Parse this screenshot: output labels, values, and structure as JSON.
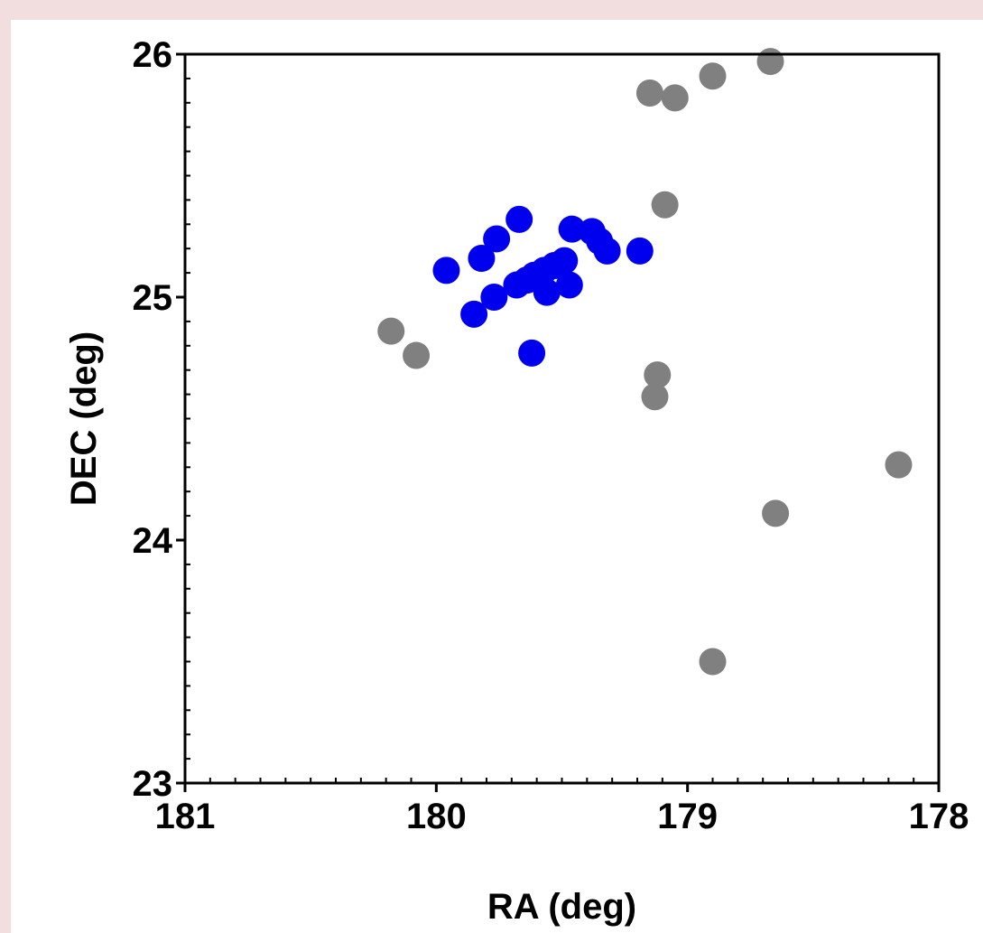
{
  "chart_data": {
    "type": "scatter",
    "title": "",
    "xlabel": "RA (deg)",
    "ylabel": "DEC (deg)",
    "xlim": [
      181,
      178
    ],
    "ylim": [
      23,
      26
    ],
    "x_reversed": true,
    "grid": false,
    "x_ticks": [
      181,
      180,
      179,
      178
    ],
    "y_ticks": [
      23,
      24,
      25,
      26
    ],
    "x_tick_labels": [
      "181",
      "180",
      "179",
      "178"
    ],
    "y_tick_labels": [
      "23",
      "24",
      "25",
      "26"
    ],
    "series": [
      {
        "color": "#808080",
        "points": [
          {
            "x": 180.18,
            "y": 24.86
          },
          {
            "x": 180.08,
            "y": 24.76
          },
          {
            "x": 179.15,
            "y": 25.84
          },
          {
            "x": 179.05,
            "y": 25.82
          },
          {
            "x": 178.9,
            "y": 25.91
          },
          {
            "x": 178.67,
            "y": 25.97
          },
          {
            "x": 179.09,
            "y": 25.38
          },
          {
            "x": 179.12,
            "y": 24.68
          },
          {
            "x": 179.13,
            "y": 24.59
          },
          {
            "x": 178.16,
            "y": 24.31
          },
          {
            "x": 178.65,
            "y": 24.11
          },
          {
            "x": 178.9,
            "y": 23.5
          }
        ]
      },
      {
        "color": "#0000ee",
        "points": [
          {
            "x": 179.96,
            "y": 25.11
          },
          {
            "x": 179.82,
            "y": 25.16
          },
          {
            "x": 179.76,
            "y": 25.24
          },
          {
            "x": 179.67,
            "y": 25.32
          },
          {
            "x": 179.85,
            "y": 24.93
          },
          {
            "x": 179.77,
            "y": 25.0
          },
          {
            "x": 179.68,
            "y": 25.05
          },
          {
            "x": 179.64,
            "y": 25.07
          },
          {
            "x": 179.61,
            "y": 25.09
          },
          {
            "x": 179.57,
            "y": 25.11
          },
          {
            "x": 179.56,
            "y": 25.02
          },
          {
            "x": 179.53,
            "y": 25.13
          },
          {
            "x": 179.49,
            "y": 25.15
          },
          {
            "x": 179.47,
            "y": 25.05
          },
          {
            "x": 179.46,
            "y": 25.28
          },
          {
            "x": 179.38,
            "y": 25.27
          },
          {
            "x": 179.35,
            "y": 25.23
          },
          {
            "x": 179.32,
            "y": 25.19
          },
          {
            "x": 179.19,
            "y": 25.19
          },
          {
            "x": 179.62,
            "y": 24.77
          }
        ]
      }
    ]
  }
}
